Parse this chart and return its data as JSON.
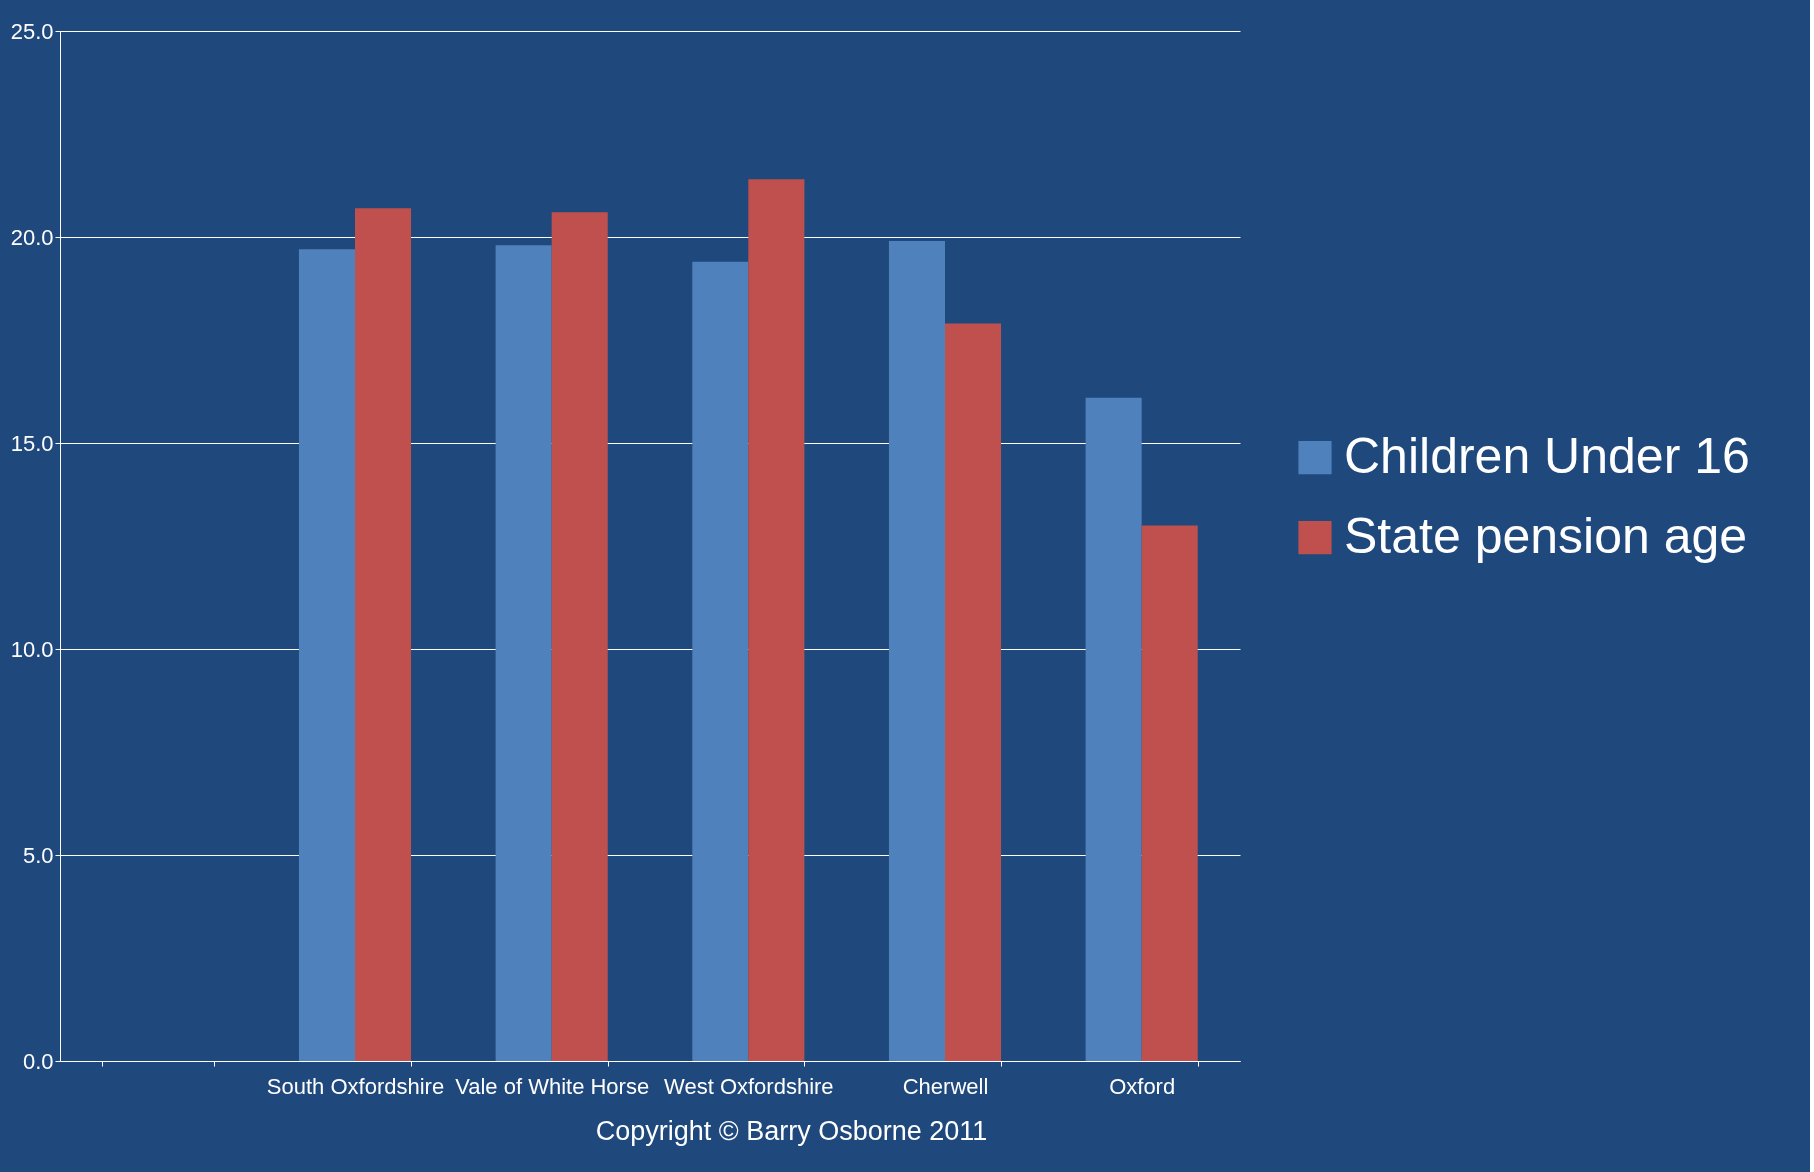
{
  "chart_data": {
    "type": "bar",
    "categories": [
      null,
      "South Oxfordshire",
      "Vale of White Horse",
      "West Oxfordshire",
      "Cherwell",
      "Oxford"
    ],
    "series": [
      {
        "name": "Children Under 16",
        "color": "#4f81bd",
        "values": [
          null,
          19.7,
          19.8,
          19.4,
          19.9,
          16.1
        ]
      },
      {
        "name": "State pension age",
        "color": "#c0504d",
        "values": [
          null,
          20.7,
          20.6,
          21.4,
          17.9,
          13.0
        ]
      }
    ],
    "ylim": [
      0,
      25
    ],
    "yticks": [
      {
        "value": 0,
        "label": "0.0"
      },
      {
        "value": 5,
        "label": "5.0"
      },
      {
        "value": 10,
        "label": "10.0"
      },
      {
        "value": 15,
        "label": "15.0"
      },
      {
        "value": 20,
        "label": "20.0"
      },
      {
        "value": 25,
        "label": "25.0"
      }
    ],
    "grid": "y",
    "legend": "right",
    "annotations": [
      "Copyright © Barry Osborne 2011"
    ]
  }
}
